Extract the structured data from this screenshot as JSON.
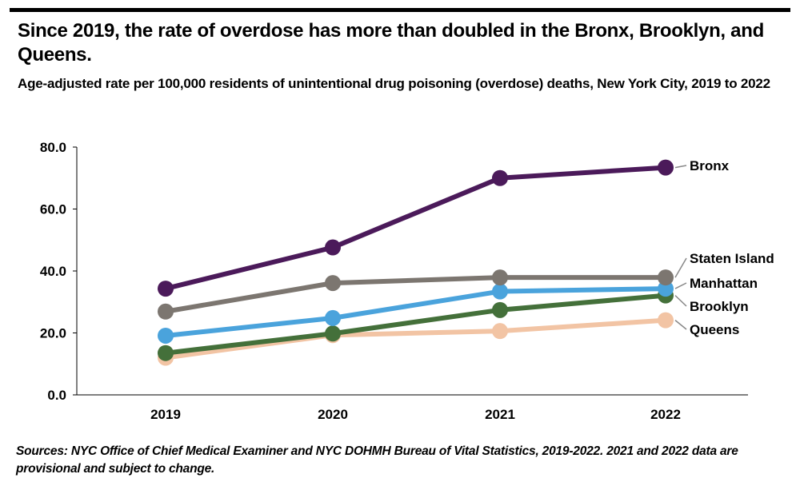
{
  "title": "Since 2019, the rate of overdose has more than doubled in the Bronx, Brooklyn, and Queens.",
  "subtitle": "Age-adjusted rate per 100,000 residents of unintentional drug poisoning (overdose) deaths, New York City, 2019 to 2022",
  "source": "Sources: NYC Office of Chief Medical Examiner and NYC DOHMH Bureau of Vital Statistics, 2019-2022. 2021 and 2022 data are provisional and subject to change.",
  "chart_data": {
    "type": "line",
    "title": "Since 2019, the rate of overdose has more than doubled in the Bronx, Brooklyn, and Queens.",
    "xlabel": "",
    "ylabel": "",
    "categories": [
      "2019",
      "2020",
      "2021",
      "2022"
    ],
    "y_ticks": [
      "0.0",
      "20.0",
      "40.0",
      "60.0",
      "80.0"
    ],
    "y_tick_values": [
      0,
      20,
      40,
      60,
      80
    ],
    "ylim": [
      0,
      80
    ],
    "grid": false,
    "series": [
      {
        "name": "Queens",
        "values": [
          12.0,
          19.3,
          20.6,
          24.1
        ],
        "color": "#f2c4a4"
      },
      {
        "name": "Brooklyn",
        "values": [
          13.5,
          19.8,
          27.4,
          32.1
        ],
        "color": "#44703a"
      },
      {
        "name": "Manhattan",
        "values": [
          19.1,
          24.8,
          33.4,
          34.3
        ],
        "color": "#4aa3dc"
      },
      {
        "name": "Staten Island",
        "values": [
          26.9,
          36.1,
          37.9,
          37.9
        ],
        "color": "#7c7670"
      },
      {
        "name": "Bronx",
        "values": [
          34.3,
          47.6,
          70.0,
          73.4
        ],
        "color": "#4b1a5a"
      }
    ],
    "label_order": [
      "Bronx",
      "Staten Island",
      "Manhattan",
      "Brooklyn",
      "Queens"
    ]
  }
}
